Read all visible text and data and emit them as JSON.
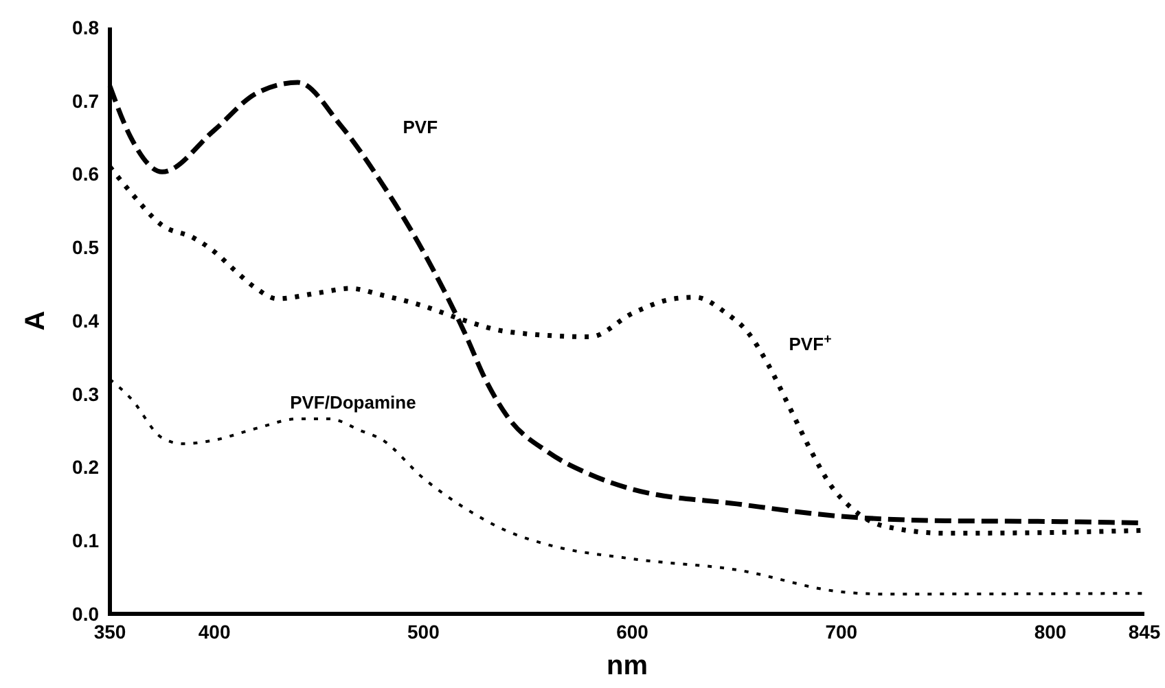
{
  "chart_data": {
    "type": "line",
    "xlabel": "nm",
    "ylabel": "A",
    "xlim": [
      350,
      845
    ],
    "xticks": [
      350,
      400,
      500,
      600,
      700,
      800,
      845
    ],
    "ylim": [
      0,
      0.8
    ],
    "yticks": [
      {
        "value": 0,
        "label": "0.0"
      },
      {
        "value": 0.1,
        "label": "0.1"
      },
      {
        "value": 0.2,
        "label": "0.2"
      },
      {
        "value": 0.3,
        "label": "0.3"
      },
      {
        "value": 0.4,
        "label": "0.4"
      },
      {
        "value": 0.5,
        "label": "0.5"
      },
      {
        "value": 0.6,
        "label": "0.6"
      },
      {
        "value": 0.7,
        "label": "0.7"
      },
      {
        "value": 0.8,
        "label": "0.8"
      }
    ],
    "grid": false,
    "series": [
      {
        "name": "PVF",
        "color": "#000000",
        "line_style": "dashed",
        "x": [
          350,
          360,
          375,
          400,
          420,
          440,
          460,
          480,
          490,
          500,
          520,
          530,
          540,
          560,
          580,
          600,
          650,
          700,
          750,
          800,
          845
        ],
        "values": [
          0.72,
          0.65,
          0.603,
          0.66,
          0.71,
          0.725,
          0.668,
          0.588,
          0.543,
          0.494,
          0.382,
          0.318,
          0.27,
          0.22,
          0.19,
          0.17,
          0.15,
          0.133,
          0.127,
          0.126,
          0.124
        ]
      },
      {
        "name": "PVF$^{+}$",
        "color": "#000000",
        "line_style": "dotted",
        "x": [
          350,
          360,
          375,
          390,
          400,
          410,
          420,
          430,
          450,
          465,
          480,
          500,
          520,
          540,
          580,
          600,
          620,
          630,
          645,
          655,
          665,
          675,
          685,
          695,
          705,
          720,
          750,
          800,
          845
        ],
        "values": [
          0.61,
          0.575,
          0.53,
          0.513,
          0.494,
          0.468,
          0.444,
          0.43,
          0.438,
          0.444,
          0.435,
          0.42,
          0.4,
          0.385,
          0.378,
          0.41,
          0.43,
          0.432,
          0.41,
          0.385,
          0.34,
          0.283,
          0.225,
          0.175,
          0.144,
          0.12,
          0.11,
          0.111,
          0.114
        ]
      },
      {
        "name": "PVF/Dopamine",
        "color": "#000000",
        "line_style": "dotted",
        "x": [
          350,
          360,
          375,
          385,
          400,
          420,
          440,
          455,
          470,
          480,
          500,
          520,
          540,
          560,
          600,
          650,
          700,
          720,
          845
        ],
        "values": [
          0.32,
          0.294,
          0.24,
          0.232,
          0.237,
          0.253,
          0.266,
          0.266,
          0.25,
          0.238,
          0.185,
          0.144,
          0.113,
          0.094,
          0.075,
          0.06,
          0.03,
          0.027,
          0.028
        ]
      }
    ]
  }
}
